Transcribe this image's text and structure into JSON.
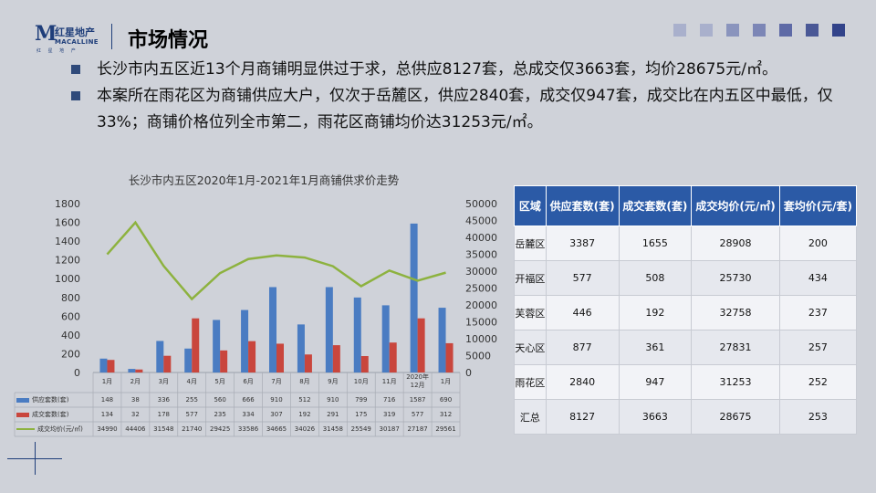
{
  "header": {
    "logo_mark": "M",
    "logo_cn": "红星地产",
    "logo_en": "MACALLINE",
    "logo_sub": "红 星 地 产",
    "title": "市场情况"
  },
  "deco_colors": [
    "#a9b0cc",
    "#a9b0cc",
    "#8a94bd",
    "#7c86b6",
    "#5e6aa6",
    "#4a5896",
    "#32438a"
  ],
  "bullets": [
    "长沙市内五区近13个月商铺明显供过于求，总供应8127套，总成交仅3663套，均价28675元/㎡。",
    "本案所在雨花区为商铺供应大户，仅次于岳麓区，供应2840套，成交仅947套，成交比在内五区中最低，仅33%；商铺价格位列全市第二，雨花区商铺均价达31253元/㎡。"
  ],
  "colors": {
    "supply": "#4a7cc2",
    "deal": "#c9463d",
    "price": "#8db23f",
    "header_blue": "#2b5aa6"
  },
  "chart_data": {
    "type": "bar",
    "title": "长沙市内五区2020年1月-2021年1月商铺供求价走势",
    "categories": [
      "1月",
      "2月",
      "3月",
      "4月",
      "5月",
      "6月",
      "7月",
      "8月",
      "9月",
      "10月",
      "11月",
      "2020年 12月",
      "1月"
    ],
    "series": [
      {
        "name": "供应套数(套)",
        "type": "bar",
        "axis": "left",
        "values": [
          148,
          38,
          336,
          255,
          560,
          666,
          910,
          512,
          910,
          799,
          716,
          1587,
          690
        ]
      },
      {
        "name": "成交套数(套)",
        "type": "bar",
        "axis": "left",
        "values": [
          134,
          32,
          178,
          577,
          235,
          334,
          307,
          192,
          291,
          175,
          319,
          577,
          312
        ]
      },
      {
        "name": "成交均价(元/㎡)",
        "type": "line",
        "axis": "right",
        "values": [
          34990,
          44406,
          31548,
          21740,
          29425,
          33586,
          34665,
          34026,
          31458,
          25549,
          30187,
          27187,
          29561
        ]
      }
    ],
    "y_left": {
      "ticks": [
        "0",
        "200",
        "400",
        "600",
        "800",
        "1000",
        "1200",
        "1400",
        "1600",
        "1800"
      ],
      "range": [
        0,
        1800
      ]
    },
    "y_right": {
      "ticks": [
        "0",
        "5000",
        "10000",
        "15000",
        "20000",
        "25000",
        "30000",
        "35000",
        "40000",
        "45000",
        "50000"
      ],
      "range": [
        0,
        50000
      ]
    },
    "data_table": true
  },
  "table": {
    "headers": [
      "区域",
      "供应套数(套)",
      "成交套数(套)",
      "成交均价(元/㎡)",
      "套均价(元/套)"
    ],
    "rows": [
      [
        "岳麓区",
        "3387",
        "1655",
        "28908",
        "200"
      ],
      [
        "开福区",
        "577",
        "508",
        "25730",
        "434"
      ],
      [
        "芙蓉区",
        "446",
        "192",
        "32758",
        "237"
      ],
      [
        "天心区",
        "877",
        "361",
        "27831",
        "257"
      ],
      [
        "雨花区",
        "2840",
        "947",
        "31253",
        "252"
      ],
      [
        "汇总",
        "8127",
        "3663",
        "28675",
        "253"
      ]
    ]
  }
}
